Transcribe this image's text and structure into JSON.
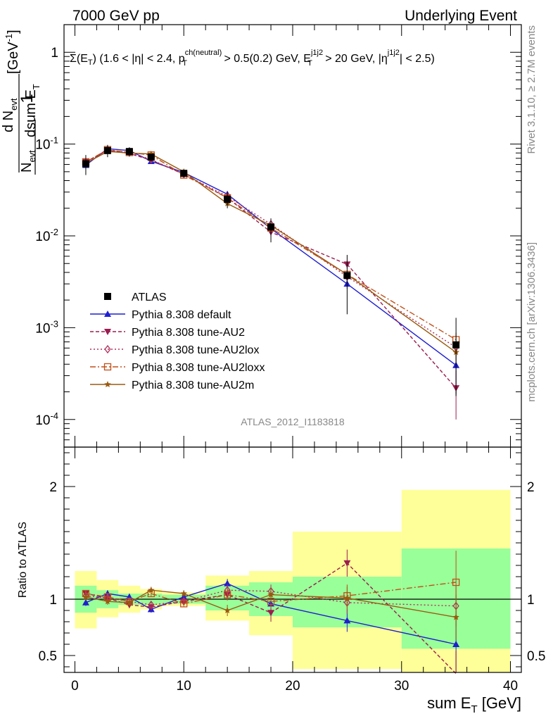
{
  "header": {
    "left": "7000 GeV pp",
    "right": "Underlying Event"
  },
  "side": {
    "rivet": "Rivet 3.1.10, ≥ 2.7M events",
    "mcplots": "mcplots.cern.ch [arXiv:1306.3436]"
  },
  "chart_data": [
    {
      "type": "line",
      "panel": "main",
      "title": "Σ(E_T) (1.6 < |η| < 2.4, p_T^ch(neutral) > 0.5(0.2) GeV, E_T^j1j2 > 20 GeV, |η^j1j2| < 2.5)",
      "ylabel": "1/N_evt dN_evt/dsum E_T [GeV^-1]",
      "yscale": "log",
      "ylim": [
        5e-05,
        2
      ],
      "xlim": [
        -1,
        41
      ],
      "yticks": [
        "1",
        "10^-1",
        "10^-2",
        "10^-3",
        "10^-4"
      ],
      "watermark": "ATLAS_2012_I1183818",
      "legend_position": "lower-left",
      "x": [
        1,
        3,
        5,
        7,
        10,
        14,
        18,
        25,
        35
      ],
      "series": [
        {
          "name": "ATLAS",
          "style": "data",
          "color": "#000000",
          "values": [
            0.061,
            0.085,
            0.083,
            0.072,
            0.048,
            0.025,
            0.0125,
            0.0037,
            0.00065
          ],
          "band_stat": [
            [
              0.054,
              0.068
            ],
            [
              0.078,
              0.092
            ],
            [
              0.078,
              0.088
            ],
            [
              0.068,
              0.076
            ],
            [
              0.046,
              0.05
            ],
            [
              0.022,
              0.028
            ],
            [
              0.011,
              0.014
            ],
            [
              0.0029,
              0.0045
            ],
            [
              0.00037,
              0.00093
            ]
          ],
          "band_total": [
            [
              0.046,
              0.076
            ],
            [
              0.072,
              0.098
            ],
            [
              0.074,
              0.092
            ],
            [
              0.066,
              0.078
            ],
            [
              0.045,
              0.051
            ],
            [
              0.02,
              0.03
            ],
            [
              0.0085,
              0.0155
            ],
            [
              0.0014,
              0.0062
            ],
            [
              0.00018,
              0.00128
            ]
          ],
          "bin_edges": [
            [
              0,
              2
            ],
            [
              2,
              4
            ],
            [
              4,
              6
            ],
            [
              6,
              8
            ],
            [
              8,
              12
            ],
            [
              12,
              16
            ],
            [
              16,
              20
            ],
            [
              20,
              30
            ],
            [
              30,
              40
            ]
          ]
        },
        {
          "name": "Pythia 8.308 default",
          "color": "#1f1fd0",
          "dash": "",
          "marker": "triangle-up",
          "values": [
            0.059,
            0.089,
            0.085,
            0.065,
            0.049,
            0.0285,
            0.012,
            0.003,
            0.00039
          ],
          "errors": [
            0.002,
            0.002,
            0.002,
            0.002,
            0.0015,
            0.0012,
            0.0007,
            0.00035,
            0.0002
          ]
        },
        {
          "name": "Pythia 8.308 tune-AU2",
          "color": "#9b1d4f",
          "dash": "5,3",
          "marker": "triangle-down",
          "values": [
            0.064,
            0.086,
            0.079,
            0.067,
            0.047,
            0.026,
            0.011,
            0.0049,
            0.00022
          ],
          "errors": [
            0.002,
            0.002,
            0.002,
            0.002,
            0.0015,
            0.0012,
            0.0012,
            0.0005,
            0.00012
          ]
        },
        {
          "name": "Pythia 8.308 tune-AU2lox",
          "color": "#b0305c",
          "dash": "2,3",
          "marker": "diamond-open",
          "values": [
            0.063,
            0.086,
            0.081,
            0.068,
            0.047,
            0.027,
            0.0134,
            0.0036,
            0.00061
          ],
          "errors": [
            0.002,
            0.002,
            0.002,
            0.002,
            0.0015,
            0.0012,
            0.0008,
            0.0004,
            0.00012
          ]
        },
        {
          "name": "Pythia 8.308 tune-AU2loxx",
          "color": "#c0501a",
          "dash": "8,3,2,3",
          "marker": "square-open",
          "values": [
            0.064,
            0.087,
            0.081,
            0.076,
            0.046,
            0.026,
            0.0122,
            0.0038,
            0.00074
          ],
          "errors": [
            0.002,
            0.002,
            0.002,
            0.002,
            0.0015,
            0.0012,
            0.0008,
            0.0004,
            0.00014
          ]
        },
        {
          "name": "Pythia 8.308 tune-AU2m",
          "color": "#9a5a10",
          "dash": "",
          "marker": "star",
          "values": [
            0.062,
            0.083,
            0.08,
            0.078,
            0.05,
            0.0225,
            0.013,
            0.0038,
            0.00054
          ],
          "errors": [
            0.002,
            0.002,
            0.002,
            0.002,
            0.0015,
            0.0012,
            0.0008,
            0.0004,
            0.00012
          ]
        }
      ]
    },
    {
      "type": "line",
      "panel": "ratio",
      "ylabel": "Ratio to ATLAS",
      "xlabel": "sum E_T [GeV]",
      "ylim": [
        0.35,
        2.35
      ],
      "xlim": [
        -1,
        41
      ],
      "xticks": [
        0,
        10,
        20,
        30,
        40
      ],
      "yticks": [
        0.5,
        1,
        2
      ],
      "x": [
        1,
        3,
        5,
        7,
        10,
        14,
        18,
        25,
        35
      ],
      "bin_edges": [
        [
          0,
          2
        ],
        [
          2,
          4
        ],
        [
          4,
          6
        ],
        [
          6,
          8
        ],
        [
          8,
          12
        ],
        [
          12,
          16
        ],
        [
          16,
          20
        ],
        [
          20,
          30
        ],
        [
          30,
          40
        ]
      ],
      "band_stat": [
        [
          0.88,
          1.12
        ],
        [
          0.92,
          1.08
        ],
        [
          0.95,
          1.05
        ],
        [
          0.95,
          1.05
        ],
        [
          0.96,
          1.04
        ],
        [
          0.9,
          1.12
        ],
        [
          0.85,
          1.15
        ],
        [
          0.75,
          1.2
        ],
        [
          0.56,
          1.45
        ]
      ],
      "band_total": [
        [
          0.74,
          1.25
        ],
        [
          0.84,
          1.17
        ],
        [
          0.88,
          1.12
        ],
        [
          0.91,
          1.09
        ],
        [
          0.94,
          1.06
        ],
        [
          0.81,
          1.21
        ],
        [
          0.68,
          1.25
        ],
        [
          0.38,
          1.6
        ],
        [
          0.28,
          1.97
        ]
      ],
      "series": [
        {
          "name": "Pythia 8.308 default",
          "values": [
            0.97,
            1.05,
            1.02,
            0.91,
            1.02,
            1.14,
            0.96,
            0.81,
            0.6
          ],
          "errors": [
            0.03,
            0.03,
            0.03,
            0.03,
            0.03,
            0.04,
            0.06,
            0.1,
            0.3
          ]
        },
        {
          "name": "Pythia 8.308 tune-AU2",
          "values": [
            1.05,
            1.01,
            0.95,
            0.93,
            0.98,
            1.04,
            0.88,
            1.32,
            0.34
          ],
          "errors": [
            0.03,
            0.03,
            0.03,
            0.03,
            0.03,
            0.05,
            0.08,
            0.12,
            0.2
          ]
        },
        {
          "name": "Pythia 8.308 tune-AU2lox",
          "values": [
            1.03,
            1.01,
            0.98,
            0.95,
            0.98,
            1.08,
            1.07,
            0.97,
            0.94
          ],
          "errors": [
            0.03,
            0.03,
            0.03,
            0.03,
            0.03,
            0.05,
            0.06,
            0.1,
            0.18
          ]
        },
        {
          "name": "Pythia 8.308 tune-AU2loxx",
          "values": [
            1.05,
            1.02,
            0.98,
            1.05,
            0.96,
            1.04,
            0.98,
            1.03,
            1.15
          ],
          "errors": [
            0.03,
            0.03,
            0.03,
            0.03,
            0.03,
            0.05,
            0.06,
            0.1,
            0.28
          ]
        },
        {
          "name": "Pythia 8.308 tune-AU2m",
          "values": [
            1.02,
            0.98,
            0.97,
            1.08,
            1.05,
            0.9,
            1.04,
            1.01,
            0.84
          ],
          "errors": [
            0.03,
            0.03,
            0.03,
            0.03,
            0.03,
            0.05,
            0.06,
            0.1,
            0.2
          ]
        }
      ]
    }
  ],
  "colors": {
    "band_total": "#ffff99",
    "band_stat": "#99ff99"
  }
}
